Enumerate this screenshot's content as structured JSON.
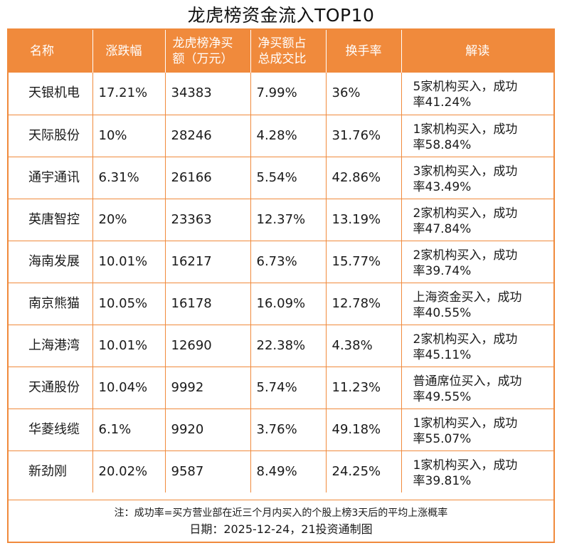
{
  "title": "龙虎榜资金流入TOP10",
  "header": {
    "name": "名称",
    "change": "涨跌幅",
    "net_buy_line1": "龙虎榜净买",
    "net_buy_line2": "额（万元）",
    "ratio_line1": "净买额占",
    "ratio_line2": "总成交比",
    "turnover": "换手率",
    "reading": "解读"
  },
  "rows": [
    {
      "name": "天银机电",
      "change": "17.21%",
      "net_buy": "34383",
      "ratio": "7.99%",
      "turnover": "36%",
      "read1": "5家机构买入，成功",
      "read2": "率41.24%"
    },
    {
      "name": "天际股份",
      "change": "10%",
      "net_buy": "28246",
      "ratio": "4.28%",
      "turnover": "31.76%",
      "read1": "1家机构买入，成功",
      "read2": "率58.84%"
    },
    {
      "name": "通宇通讯",
      "change": "6.31%",
      "net_buy": "26166",
      "ratio": "5.54%",
      "turnover": "42.86%",
      "read1": "3家机构买入，成功",
      "read2": "率43.49%"
    },
    {
      "name": "英唐智控",
      "change": "20%",
      "net_buy": "23363",
      "ratio": "12.37%",
      "turnover": "13.19%",
      "read1": "2家机构买入，成功",
      "read2": "率47.84%"
    },
    {
      "name": "海南发展",
      "change": "10.01%",
      "net_buy": "16217",
      "ratio": "6.73%",
      "turnover": "15.77%",
      "read1": "2家机构买入，成功",
      "read2": "率39.74%"
    },
    {
      "name": "南京熊猫",
      "change": "10.05%",
      "net_buy": "16178",
      "ratio": "16.09%",
      "turnover": "12.78%",
      "read1": "上海资金买入，成功",
      "read2": "率40.55%"
    },
    {
      "name": "上海港湾",
      "change": "10.01%",
      "net_buy": "12690",
      "ratio": "22.38%",
      "turnover": "4.38%",
      "read1": "2家机构买入，成功",
      "read2": "率45.11%"
    },
    {
      "name": "天通股份",
      "change": "10.04%",
      "net_buy": "9992",
      "ratio": "5.74%",
      "turnover": "11.23%",
      "read1": "普通席位买入，成功",
      "read2": "率49.55%"
    },
    {
      "name": "华菱线缆",
      "change": "6.1%",
      "net_buy": "9920",
      "ratio": "3.76%",
      "turnover": "49.18%",
      "read1": "1家机构买入，成功",
      "read2": "率55.07%"
    },
    {
      "name": "新劲刚",
      "change": "20.02%",
      "net_buy": "9587",
      "ratio": "8.49%",
      "turnover": "24.25%",
      "read1": "1家机构买入，成功",
      "read2": "率39.81%"
    }
  ],
  "footer": {
    "note": "注：成功率=买方营业部在近三个月内买入的个股上榜3天后的平均上涨概率",
    "date": "日期：2025-12-24，21投资通制图"
  },
  "colors": {
    "accent": "#f08a3c",
    "header_text": "#ffffff"
  }
}
